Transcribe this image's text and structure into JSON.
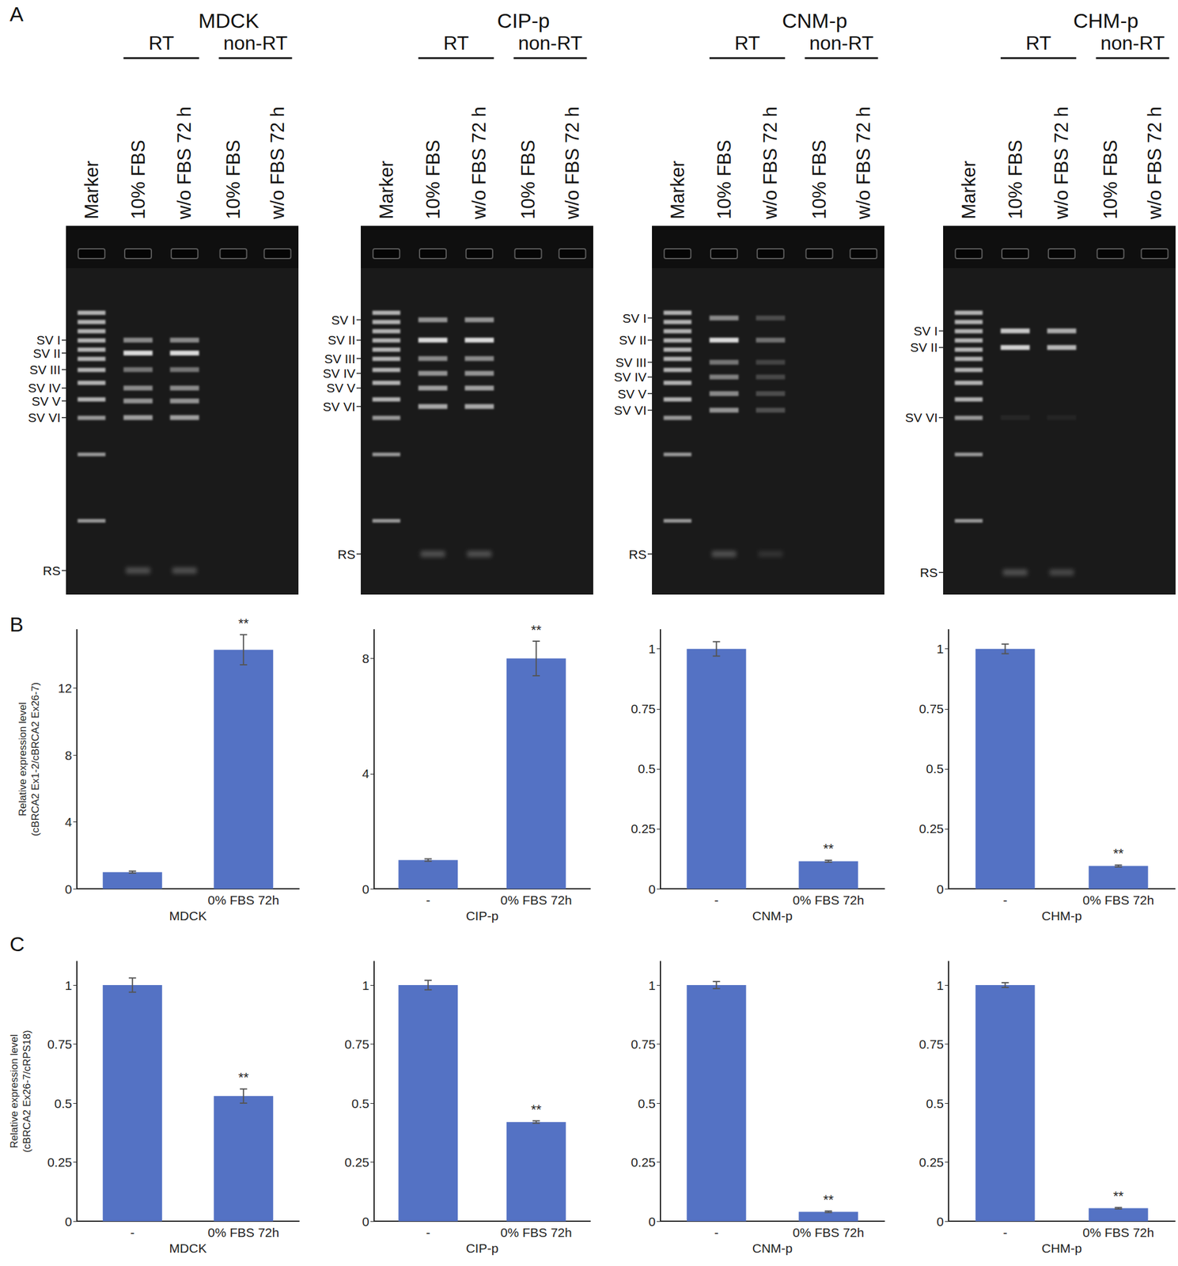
{
  "panel_labels": [
    "A",
    "B",
    "C"
  ],
  "gels": [
    {
      "title": "MDCK",
      "groups": [
        "RT",
        "non-RT"
      ],
      "lanes": [
        "Marker",
        "10% FBS",
        "w/o FBS 72 h",
        "10% FBS",
        "w/o FBS 72 h"
      ],
      "band_labels": [
        "SV I",
        "SV II",
        "SV III",
        "SV IV",
        "SV V",
        "SV VI",
        "RS"
      ]
    },
    {
      "title": "CIP-p",
      "groups": [
        "RT",
        "non-RT"
      ],
      "lanes": [
        "Marker",
        "10% FBS",
        "w/o FBS 72 h",
        "10% FBS",
        "w/o FBS 72 h"
      ],
      "band_labels": [
        "SV I",
        "SV II",
        "SV III",
        "SV IV",
        "SV V",
        "SV VI",
        "RS"
      ]
    },
    {
      "title": "CNM-p",
      "groups": [
        "RT",
        "non-RT"
      ],
      "lanes": [
        "Marker",
        "10% FBS",
        "w/o FBS 72 h",
        "10% FBS",
        "w/o FBS 72 h"
      ],
      "band_labels": [
        "SV I",
        "SV II",
        "SV III",
        "SV IV",
        "SV V",
        "SV VI",
        "RS"
      ]
    },
    {
      "title": "CHM-p",
      "groups": [
        "RT",
        "non-RT"
      ],
      "lanes": [
        "Marker",
        "10% FBS",
        "w/o FBS 72 h",
        "10% FBS",
        "w/o FBS 72 h"
      ],
      "band_labels": [
        "SV I",
        "SV II",
        "SV VI",
        "RS"
      ]
    }
  ],
  "chart_data": [
    {
      "type": "bar",
      "categories": [
        null,
        "0% FBS 72h"
      ],
      "x_label": "MDCK",
      "y_label": "Relative expression level\n(cBRCA2 Ex1-2/cBRCA2 Ex26-7)",
      "values": [
        1.0,
        14.3
      ],
      "errors": [
        0.06,
        0.9
      ],
      "significance": [
        null,
        "**"
      ],
      "color": "#5472c4",
      "ylim": [
        0,
        15.5
      ],
      "yticks": [
        0,
        4,
        8,
        12
      ]
    },
    {
      "type": "bar",
      "categories": [
        "-",
        "0% FBS 72h"
      ],
      "x_label": "CIP-p",
      "values": [
        1.0,
        8.0
      ],
      "errors": [
        0.04,
        0.6
      ],
      "significance": [
        null,
        "**"
      ],
      "color": "#5472c4",
      "ylim": [
        0,
        9
      ],
      "yticks": [
        0,
        4,
        8
      ]
    },
    {
      "type": "bar",
      "categories": [
        "-",
        "0% FBS 72h"
      ],
      "x_label": "CNM-p",
      "values": [
        1.0,
        0.115
      ],
      "errors": [
        0.03,
        0.004
      ],
      "significance": [
        null,
        "**"
      ],
      "color": "#5472c4",
      "ylim": [
        0,
        1.08
      ],
      "yticks": [
        0,
        0.25,
        0.5,
        0.75,
        1
      ]
    },
    {
      "type": "bar",
      "categories": [
        "-",
        "0% FBS 72h"
      ],
      "x_label": "CHM-p",
      "values": [
        1.0,
        0.095
      ],
      "errors": [
        0.02,
        0.004
      ],
      "significance": [
        null,
        "**"
      ],
      "color": "#5472c4",
      "ylim": [
        0,
        1.08
      ],
      "yticks": [
        0,
        0.25,
        0.5,
        0.75,
        1
      ]
    },
    {
      "type": "bar",
      "categories": [
        "-",
        "0% FBS 72h"
      ],
      "x_label": "MDCK",
      "y_label": "Relative expression level\n(cBRCA2 Ex26-7/cRPS18)",
      "values": [
        1.0,
        0.53
      ],
      "errors": [
        0.03,
        0.03
      ],
      "significance": [
        null,
        "**"
      ],
      "color": "#5472c4",
      "ylim": [
        0,
        1.1
      ],
      "yticks": [
        0,
        0.25,
        0.5,
        0.75,
        1
      ]
    },
    {
      "type": "bar",
      "categories": [
        "-",
        "0% FBS 72h"
      ],
      "x_label": "CIP-p",
      "values": [
        1.0,
        0.42
      ],
      "errors": [
        0.02,
        0.005
      ],
      "significance": [
        null,
        "**"
      ],
      "color": "#5472c4",
      "ylim": [
        0,
        1.1
      ],
      "yticks": [
        0,
        0.25,
        0.5,
        0.75,
        1
      ]
    },
    {
      "type": "bar",
      "categories": [
        "-",
        "0% FBS 72h"
      ],
      "x_label": "CNM-p",
      "values": [
        1.0,
        0.04
      ],
      "errors": [
        0.015,
        0.003
      ],
      "significance": [
        null,
        "**"
      ],
      "color": "#5472c4",
      "ylim": [
        0,
        1.1
      ],
      "yticks": [
        0,
        0.25,
        0.5,
        0.75,
        1
      ]
    },
    {
      "type": "bar",
      "categories": [
        "-",
        "0% FBS 72h"
      ],
      "x_label": "CHM-p",
      "values": [
        1.0,
        0.055
      ],
      "errors": [
        0.01,
        0.003
      ],
      "significance": [
        null,
        "**"
      ],
      "color": "#5472c4",
      "ylim": [
        0,
        1.1
      ],
      "yticks": [
        0,
        0.25,
        0.5,
        0.75,
        1
      ]
    }
  ]
}
